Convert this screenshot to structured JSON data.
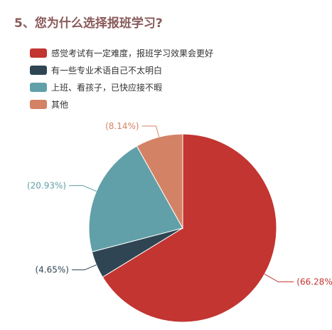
{
  "title": "5、您为什么选择报班学习?",
  "chart_data": {
    "type": "pie",
    "title": "5、您为什么选择报班学习?",
    "legend_position": "top-left",
    "slices": [
      {
        "label": "感觉考试有一定难度，报班学习效果会更好",
        "value": 66.28,
        "display": "(66.28%)",
        "color": "#c23531"
      },
      {
        "label": "有一些专业术语自己不太明白",
        "value": 4.65,
        "display": "(4.65%)",
        "color": "#2f4554"
      },
      {
        "label": "上班、看孩子，已快应接不暇",
        "value": 20.93,
        "display": "(20.93%)",
        "color": "#61a0a8"
      },
      {
        "label": "其他",
        "value": 8.14,
        "display": "(8.14%)",
        "color": "#d48265"
      }
    ]
  }
}
